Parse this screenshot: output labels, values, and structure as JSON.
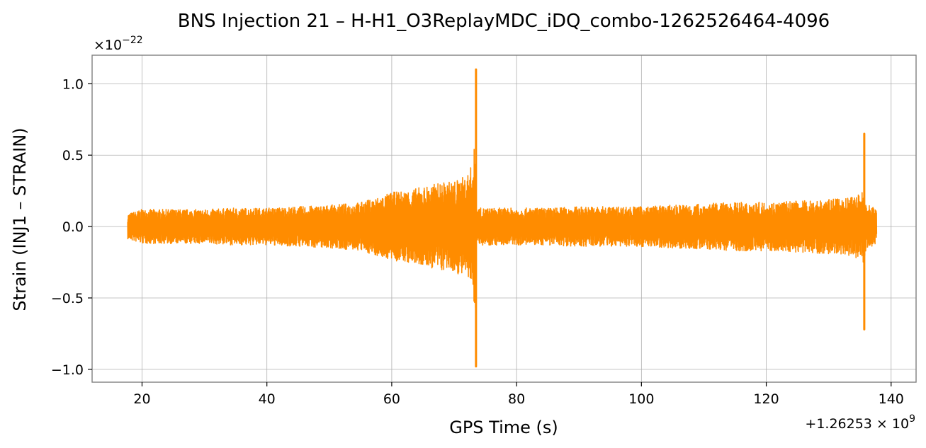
{
  "chart_data": {
    "type": "line",
    "title": "BNS Injection 21 – H-H1_O3ReplayMDC_iDQ_combo-1262526464-4096",
    "xlabel": "GPS Time (s)",
    "ylabel": "Strain (INJ1 – STRAIN)",
    "x_offset_label": "+1.26253 × 10",
    "x_offset_exponent": "9",
    "y_multiplier_label": "×10",
    "y_multiplier_exponent": "−22",
    "xlim": [
      12,
      144
    ],
    "ylim": [
      -1.09,
      1.2
    ],
    "x_ticks": [
      {
        "value": 20,
        "label": "20"
      },
      {
        "value": 40,
        "label": "40"
      },
      {
        "value": 60,
        "label": "60"
      },
      {
        "value": 80,
        "label": "80"
      },
      {
        "value": 100,
        "label": "100"
      },
      {
        "value": 120,
        "label": "120"
      },
      {
        "value": 140,
        "label": "140"
      }
    ],
    "y_ticks": [
      {
        "value": -1.0,
        "label": "−1.0"
      },
      {
        "value": -0.5,
        "label": "−0.5"
      },
      {
        "value": 0.0,
        "label": "0.0"
      },
      {
        "value": 0.5,
        "label": "0.5"
      },
      {
        "value": 1.0,
        "label": "1.0"
      }
    ],
    "grid": true,
    "series": [
      {
        "color": "#ff8c00",
        "x_range": [
          17.7,
          137.7
        ],
        "envelope": [
          [
            17.7,
            0.09
          ],
          [
            20,
            0.12
          ],
          [
            25,
            0.12
          ],
          [
            30,
            0.12
          ],
          [
            35,
            0.13
          ],
          [
            40,
            0.13
          ],
          [
            45,
            0.14
          ],
          [
            50,
            0.15
          ],
          [
            55,
            0.17
          ],
          [
            58,
            0.21
          ],
          [
            60,
            0.24
          ],
          [
            62,
            0.25
          ],
          [
            64,
            0.27
          ],
          [
            66,
            0.29
          ],
          [
            68,
            0.31
          ],
          [
            70,
            0.32
          ],
          [
            72,
            0.36
          ],
          [
            73.0,
            0.45
          ],
          [
            73.4,
            0.65
          ],
          [
            73.6,
            0.0
          ],
          [
            73.7,
            0.13
          ],
          [
            75,
            0.13
          ],
          [
            80,
            0.13
          ],
          [
            85,
            0.13
          ],
          [
            90,
            0.14
          ],
          [
            95,
            0.14
          ],
          [
            100,
            0.14
          ],
          [
            105,
            0.15
          ],
          [
            110,
            0.16
          ],
          [
            115,
            0.17
          ],
          [
            120,
            0.17
          ],
          [
            125,
            0.18
          ],
          [
            130,
            0.19
          ],
          [
            133,
            0.2
          ],
          [
            135,
            0.23
          ],
          [
            135.5,
            0.26
          ],
          [
            136,
            0.16
          ],
          [
            137.7,
            0.13
          ]
        ],
        "spikes": [
          {
            "x": 73.5,
            "max": 1.1,
            "min": -0.98
          },
          {
            "x": 135.7,
            "max": 0.65,
            "min": -0.72
          }
        ]
      }
    ]
  }
}
